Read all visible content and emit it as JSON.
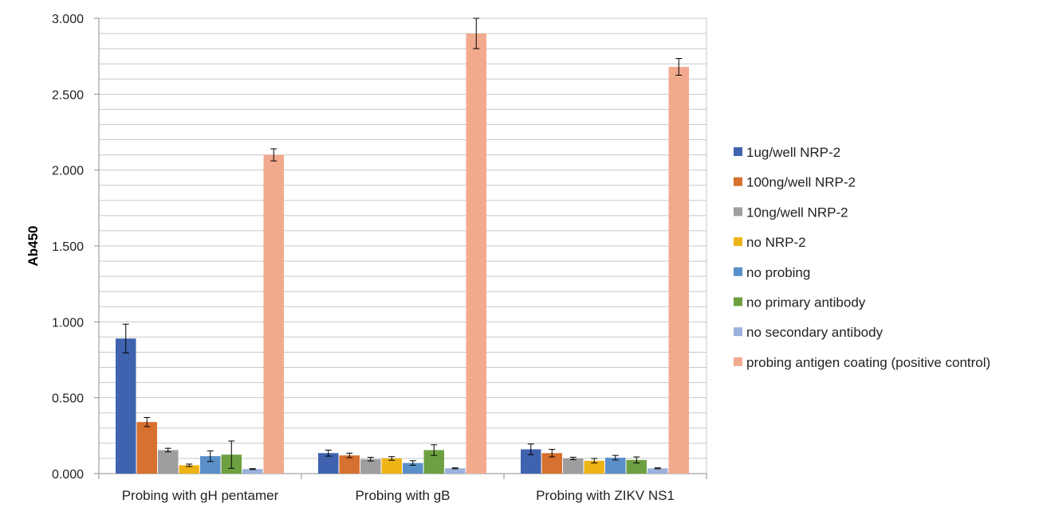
{
  "chart_data": {
    "type": "bar",
    "title": "",
    "xlabel": "",
    "ylabel": "Ab450",
    "ylim": [
      0,
      3
    ],
    "yticks": [
      "0.000",
      "0.500",
      "1.000",
      "1.500",
      "2.000",
      "2.500",
      "3.000"
    ],
    "ytick_values": [
      0,
      0.5,
      1,
      1.5,
      2,
      2.5,
      3
    ],
    "grid": true,
    "legend_position": "right",
    "categories": [
      "Probing with gH pentamer",
      "Probing with gB",
      "Probing with ZIKV NS1"
    ],
    "series": [
      {
        "name": "1ug/well NRP-2",
        "color": "#3F63AE",
        "values": [
          0.89,
          0.135,
          0.16
        ],
        "errors": [
          0.095,
          0.02,
          0.035
        ]
      },
      {
        "name": "100ng/well NRP-2",
        "color": "#D7712F",
        "values": [
          0.34,
          0.12,
          0.135
        ],
        "errors": [
          0.03,
          0.015,
          0.025
        ]
      },
      {
        "name": "10ng/well NRP-2",
        "color": "#9E9E9E",
        "values": [
          0.155,
          0.095,
          0.1
        ],
        "errors": [
          0.012,
          0.012,
          0.008
        ]
      },
      {
        "name": "no NRP-2",
        "color": "#EEB315",
        "values": [
          0.055,
          0.1,
          0.085
        ],
        "errors": [
          0.008,
          0.012,
          0.015
        ]
      },
      {
        "name": "no probing",
        "color": "#5A8FC9",
        "values": [
          0.115,
          0.07,
          0.105
        ],
        "errors": [
          0.035,
          0.015,
          0.015
        ]
      },
      {
        "name": "no primary antibody",
        "color": "#6DA041",
        "values": [
          0.125,
          0.155,
          0.09
        ],
        "errors": [
          0.09,
          0.035,
          0.02
        ]
      },
      {
        "name": "no secondary antibody",
        "color": "#9CB1DB",
        "values": [
          0.03,
          0.035,
          0.035
        ],
        "errors": [
          0.003,
          0.003,
          0.003
        ]
      },
      {
        "name": "probing antigen coating (positive control)",
        "color": "#F2AA8E",
        "values": [
          2.1,
          2.9,
          2.68
        ],
        "errors": [
          0.04,
          0.1,
          0.055
        ]
      }
    ]
  }
}
